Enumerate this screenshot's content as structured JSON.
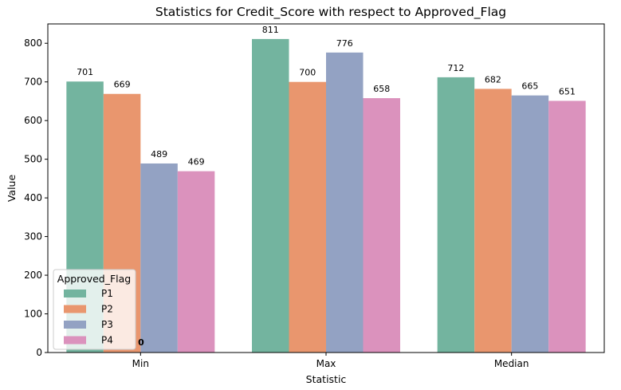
{
  "chart_data": {
    "type": "bar",
    "title": "Statistics for Credit_Score with respect to Approved_Flag",
    "xlabel": "Statistic",
    "ylabel": "Value",
    "categories": [
      "Min",
      "Max",
      "Median"
    ],
    "ylim": [
      0,
      850
    ],
    "yticks": [
      0,
      100,
      200,
      300,
      400,
      500,
      600,
      700,
      800
    ],
    "series": [
      {
        "name": "P1",
        "color": "#73b49f",
        "values": [
          701,
          811,
          712
        ]
      },
      {
        "name": "P2",
        "color": "#e9966e",
        "values": [
          669,
          700,
          682
        ]
      },
      {
        "name": "P3",
        "color": "#93a2c3",
        "values": [
          489,
          776,
          665
        ]
      },
      {
        "name": "P4",
        "color": "#db92bd",
        "values": [
          469,
          658,
          651
        ]
      }
    ],
    "data_labels": [
      [
        "701",
        "811",
        "712"
      ],
      [
        "669",
        "700",
        "682"
      ],
      [
        "489",
        "776",
        "665"
      ],
      [
        "469",
        "658",
        "651"
      ]
    ],
    "annotation": "0",
    "legend": {
      "title": "Approved_Flag",
      "placement": "lower-left",
      "entries": [
        "P1",
        "P2",
        "P3",
        "P4"
      ]
    },
    "grid": false
  }
}
